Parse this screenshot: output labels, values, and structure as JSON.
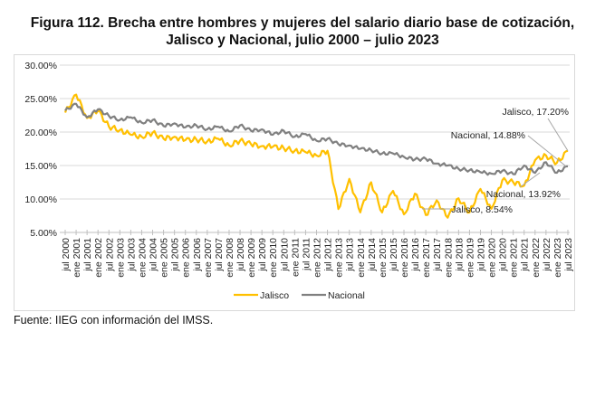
{
  "title_line1": "Figura 112.  Brecha entre hombres y mujeres del salario diario base de cotización,",
  "title_line2": "Jalisco y Nacional, julio 2000 – julio 2023",
  "source": "Fuente: IIEG con información del IMSS.",
  "chart_data": {
    "type": "line",
    "title": "Brecha entre hombres y mujeres del salario diario base de cotización, Jalisco y Nacional, julio 2000 – julio 2023",
    "xlabel": "",
    "ylabel": "",
    "ylim": [
      0.05,
      0.3
    ],
    "yticks": [
      "5.00%",
      "10.00%",
      "15.00%",
      "20.00%",
      "25.00%",
      "30.00%"
    ],
    "grid": true,
    "legend": "bottom",
    "x": [
      "jul 2000",
      "ene 2001",
      "jul 2001",
      "ene 2002",
      "jul 2002",
      "ene 2003",
      "jul 2003",
      "ene 2004",
      "jul 2004",
      "ene 2005",
      "jul 2005",
      "ene 2006",
      "jul 2006",
      "ene 2007",
      "jul 2007",
      "ene 2008",
      "jul 2008",
      "ene 2009",
      "jul 2009",
      "ene 2010",
      "jul 2010",
      "ene 2011",
      "jul 2011",
      "ene 2012",
      "jul 2012",
      "ene 2013",
      "jul 2013",
      "ene 2014",
      "jul 2014",
      "ene 2015",
      "jul 2015",
      "ene 2016",
      "jul 2016",
      "ene 2017",
      "jul 2017",
      "ene 2018",
      "jul 2018",
      "ene 2019",
      "jul 2019",
      "ene 2020",
      "jul 2020",
      "ene 2021",
      "jul 2021",
      "ene 2022",
      "jul 2022",
      "ene 2023",
      "jul 2023"
    ],
    "series": [
      {
        "name": "Jalisco",
        "color": "#FFC000",
        "values": [
          0.229,
          0.256,
          0.221,
          0.232,
          0.208,
          0.203,
          0.196,
          0.193,
          0.199,
          0.19,
          0.193,
          0.188,
          0.189,
          0.186,
          0.19,
          0.18,
          0.187,
          0.182,
          0.179,
          0.178,
          0.176,
          0.172,
          0.17,
          0.165,
          0.172,
          0.085,
          0.13,
          0.08,
          0.125,
          0.08,
          0.112,
          0.077,
          0.108,
          0.076,
          0.098,
          0.072,
          0.101,
          0.08,
          0.115,
          0.0854,
          0.128,
          0.125,
          0.12,
          0.158,
          0.165,
          0.154,
          0.172
        ]
      },
      {
        "name": "Nacional",
        "color": "#808080",
        "values": [
          0.232,
          0.242,
          0.222,
          0.234,
          0.224,
          0.218,
          0.222,
          0.214,
          0.218,
          0.209,
          0.213,
          0.207,
          0.21,
          0.204,
          0.208,
          0.201,
          0.21,
          0.202,
          0.204,
          0.196,
          0.202,
          0.193,
          0.197,
          0.187,
          0.19,
          0.182,
          0.18,
          0.175,
          0.173,
          0.168,
          0.168,
          0.163,
          0.159,
          0.16,
          0.153,
          0.15,
          0.145,
          0.143,
          0.14,
          0.138,
          0.142,
          0.137,
          0.15,
          0.139,
          0.155,
          0.1392,
          0.1488
        ]
      }
    ],
    "annotations": [
      {
        "text": "Jalisco, 17.20%",
        "series": "Jalisco",
        "x": "jul 2023"
      },
      {
        "text": "Nacional, 14.88%",
        "series": "Nacional",
        "x": "jul 2023"
      },
      {
        "text": "Nacional, 13.92%",
        "series": "Nacional",
        "x": "ene 2021"
      },
      {
        "text": "Jalisco, 8.54%",
        "series": "Jalisco",
        "x": "ene 2017"
      }
    ]
  }
}
